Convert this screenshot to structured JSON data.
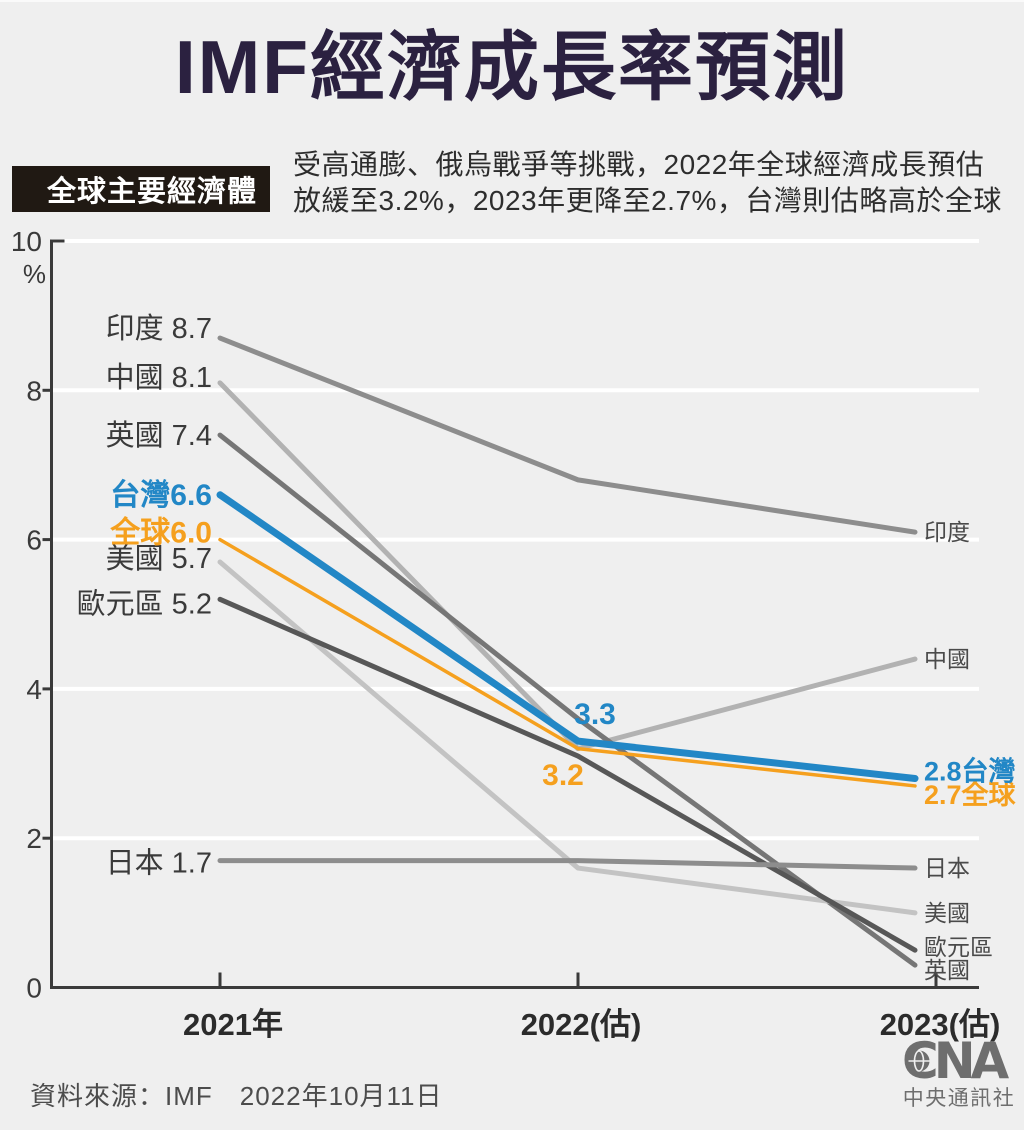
{
  "header": {
    "title": "IMF經濟成長率預測"
  },
  "intro": {
    "tag_label": "全球主要經濟體",
    "desc_line1": "受高通膨、俄烏戰爭等挑戰，2022年全球經濟成長預估",
    "desc_line2": "放緩至3.2%，2023年更降至2.7%，台灣則估略高於全球"
  },
  "footer": {
    "source": "資料來源：IMF　2022年10月11日",
    "logo_text": "CNA",
    "logo_subtext": "中央通訊社"
  },
  "colors": {
    "background": "#efefef",
    "title": "#2b2140",
    "tag_bg": "#201913",
    "tag_text": "#ffffff",
    "axis": "#3a3a3a",
    "grid": "#ffffff",
    "tick_label": "#3a3a3a",
    "x_label": "#2b2b2b",
    "side_label_gray": "#4a4a4a",
    "logo_gray": "#6e6e6e"
  },
  "chart_data": {
    "type": "line",
    "title": "全球主要經濟體經濟成長率",
    "categories": [
      "2021年",
      "2022(估)",
      "2023(估)"
    ],
    "xlabel": "",
    "ylabel": "%",
    "ylim": [
      0,
      10
    ],
    "yticks": [
      0,
      2,
      4,
      6,
      8,
      10
    ],
    "grid": "horizontal-white",
    "legend_position": "line-ends",
    "series": [
      {
        "key": "india",
        "name": "印度",
        "values": [
          8.7,
          6.8,
          6.1
        ],
        "color": "#8d8d8d",
        "width": 5,
        "left_label": "印度 8.7",
        "right_label": "印度",
        "left_dy": -10,
        "right_dy": 0,
        "emphasis": false
      },
      {
        "key": "china",
        "name": "中國",
        "values": [
          8.1,
          3.2,
          4.4
        ],
        "color": "#b2b2b2",
        "width": 5,
        "left_label": "中國 8.1",
        "right_label": "中國",
        "left_dy": -6,
        "right_dy": 0,
        "emphasis": false
      },
      {
        "key": "uk",
        "name": "英國",
        "values": [
          7.4,
          3.6,
          0.3
        ],
        "color": "#767676",
        "width": 5,
        "left_label": "英國 7.4",
        "right_label": "英國",
        "left_dy": 0,
        "right_dy": 5,
        "emphasis": false
      },
      {
        "key": "us",
        "name": "美國",
        "values": [
          5.7,
          1.6,
          1.0
        ],
        "color": "#c3c3c3",
        "width": 5,
        "left_label": "美國 5.7",
        "right_label": "美國",
        "left_dy": -4,
        "right_dy": 0,
        "emphasis": false
      },
      {
        "key": "eurozone",
        "name": "歐元區",
        "values": [
          5.2,
          3.1,
          0.5
        ],
        "color": "#575757",
        "width": 5,
        "left_label": "歐元區 5.2",
        "right_label": "歐元區",
        "left_dy": 4,
        "right_dy": -3,
        "emphasis": false
      },
      {
        "key": "japan",
        "name": "日本",
        "values": [
          1.7,
          1.7,
          1.6
        ],
        "color": "#8d8d8d",
        "width": 5,
        "left_label": "日本 1.7",
        "right_label": "日本",
        "left_dy": 2,
        "right_dy": 0,
        "emphasis": false
      },
      {
        "key": "global",
        "name": "全球",
        "values": [
          6.0,
          3.2,
          2.7
        ],
        "color": "#f5a01e",
        "width": 3.5,
        "left_label": "全球6.0",
        "right_label": "2.7全球",
        "left_dy": -7,
        "right_dy": 10,
        "emphasis": true
      },
      {
        "key": "taiwan",
        "name": "台灣",
        "values": [
          6.6,
          3.3,
          2.8
        ],
        "color": "#2287c6",
        "width": 7,
        "left_label": "台灣6.6",
        "right_label": "2.8台灣",
        "left_dy": 0,
        "right_dy": -6,
        "emphasis": true
      }
    ],
    "annotations": [
      {
        "text": "3.3",
        "color": "#2287c6",
        "x": 595,
        "y": 724
      },
      {
        "text": "3.2",
        "color": "#f5a01e",
        "x": 563,
        "y": 785
      }
    ]
  }
}
